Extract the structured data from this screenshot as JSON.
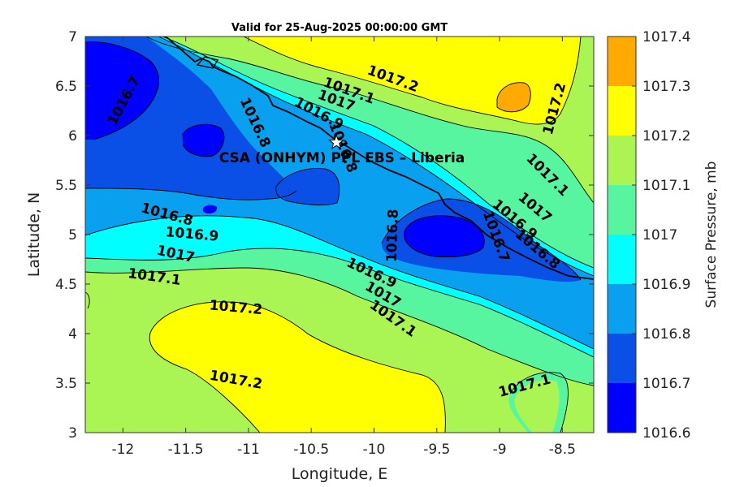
{
  "chart_data": {
    "type": "heatmap",
    "subtype": "filled-contour",
    "title": "Valid for 25-Aug-2025 00:00:00 GMT",
    "xlabel": "Longitude, E",
    "ylabel": "Latitude, N",
    "xlim": [
      -12.3,
      -8.25
    ],
    "ylim": [
      3,
      7
    ],
    "x_ticks": [
      "-12",
      "-11.5",
      "-11",
      "-10.5",
      "-10",
      "-9.5",
      "-9",
      "-8.5"
    ],
    "x_tick_values": [
      -12,
      -11.5,
      -11,
      -10.5,
      -10,
      -9.5,
      -9,
      -8.5
    ],
    "y_ticks": [
      "3",
      "3.5",
      "4",
      "4.5",
      "5",
      "5.5",
      "6",
      "6.5",
      "7"
    ],
    "y_tick_values": [
      3,
      3.5,
      4,
      4.5,
      5,
      5.5,
      6,
      6.5,
      7
    ],
    "colorbar": {
      "label": "Surface Pressure, mb",
      "levels": [
        1016.6,
        1016.7,
        1016.8,
        1016.9,
        1017.0,
        1017.1,
        1017.2,
        1017.3,
        1017.4
      ],
      "tick_labels": [
        "1016.6",
        "1016.7",
        "1016.8",
        "1016.9",
        "1017",
        "1017.1",
        "1017.2",
        "1017.3",
        "1017.4"
      ],
      "colors": [
        "#0000ff",
        "#0a50e6",
        "#0aa0f0",
        "#00ffff",
        "#57f5a0",
        "#aaf553",
        "#ffff00",
        "#ffaa00",
        "#ff5500"
      ]
    },
    "station": {
      "name": "CSA (ONHYM) PPL EBS  – Liberia",
      "lon": -10.3,
      "lat": 5.93
    },
    "contour_labels": [
      {
        "text": "1016.7",
        "lon": -11.99,
        "lat": 6.35,
        "angle": -62
      },
      {
        "text": "1016.8",
        "lon": -10.95,
        "lat": 6.13,
        "angle": 65
      },
      {
        "text": "1016.8",
        "lon": -10.25,
        "lat": 5.88,
        "angle": 68
      },
      {
        "text": "1016.9",
        "lon": -10.44,
        "lat": 6.22,
        "angle": 28
      },
      {
        "text": "1017",
        "lon": -10.3,
        "lat": 6.35,
        "angle": 20
      },
      {
        "text": "1017.1",
        "lon": -10.2,
        "lat": 6.45,
        "angle": 20
      },
      {
        "text": "1017.2",
        "lon": -9.85,
        "lat": 6.57,
        "angle": 20
      },
      {
        "text": "1017.2",
        "lon": -8.56,
        "lat": 6.27,
        "angle": -75
      },
      {
        "text": "1017.1",
        "lon": -8.62,
        "lat": 5.6,
        "angle": 45
      },
      {
        "text": "1017",
        "lon": -8.72,
        "lat": 5.27,
        "angle": 40
      },
      {
        "text": "1016.9",
        "lon": -8.88,
        "lat": 5.15,
        "angle": 40
      },
      {
        "text": "1016.8",
        "lon": -8.7,
        "lat": 4.85,
        "angle": 40
      },
      {
        "text": "1016.7",
        "lon": -9.03,
        "lat": 4.98,
        "angle": 70
      },
      {
        "text": "1016.8",
        "lon": -9.85,
        "lat": 4.99,
        "angle": -88
      },
      {
        "text": "1016.8",
        "lon": -11.65,
        "lat": 5.2,
        "angle": 15
      },
      {
        "text": "1016.9",
        "lon": -11.45,
        "lat": 5.0,
        "angle": 5
      },
      {
        "text": "1017",
        "lon": -11.58,
        "lat": 4.8,
        "angle": 12
      },
      {
        "text": "1017.1",
        "lon": -11.75,
        "lat": 4.57,
        "angle": 8
      },
      {
        "text": "1017.2",
        "lon": -11.1,
        "lat": 4.26,
        "angle": 5
      },
      {
        "text": "1017.2",
        "lon": -11.1,
        "lat": 3.53,
        "angle": 10
      },
      {
        "text": "1016.9",
        "lon": -10.02,
        "lat": 4.61,
        "angle": 25
      },
      {
        "text": "1017",
        "lon": -9.93,
        "lat": 4.39,
        "angle": 30
      },
      {
        "text": "1017.1",
        "lon": -9.85,
        "lat": 4.15,
        "angle": 35
      },
      {
        "text": "1017.1",
        "lon": -8.8,
        "lat": 3.47,
        "angle": -15
      }
    ]
  }
}
